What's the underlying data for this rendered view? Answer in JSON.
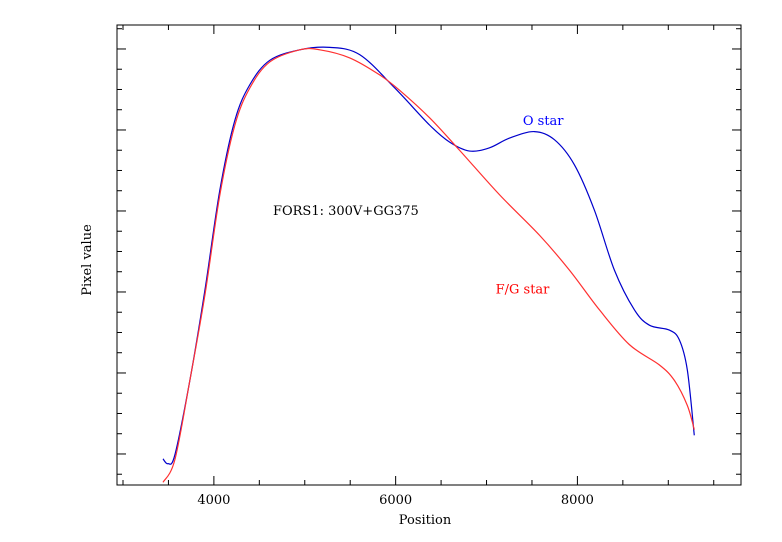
{
  "chart_data": {
    "type": "line",
    "title": "",
    "xlabel": "Position",
    "ylabel": "Pixel value",
    "xlim": [
      2934,
      9800
    ],
    "ylim": [
      -0.383,
      5.296
    ],
    "x_major_ticks": [
      4000,
      6000,
      8000
    ],
    "x_minor_step": 500,
    "y_major_ticks": [
      0,
      1,
      2,
      3,
      4,
      5
    ],
    "y_minor_step": 0.25,
    "x_tick_labels": [
      "4000",
      "6000",
      "8000"
    ],
    "y_tick_labels_shown": false,
    "grid": false,
    "annotations": [
      {
        "text": "FORS1: 300V+GG375",
        "x": 4650,
        "y": 2.95,
        "color": "#000000"
      },
      {
        "text": "O star",
        "x": 7400,
        "y": 4.06,
        "color": "#0000ff"
      },
      {
        "text": "F/G star",
        "x": 7100,
        "y": 1.98,
        "color": "#ff0000"
      }
    ],
    "series": [
      {
        "name": "O star",
        "color": "#0000cc",
        "x": [
          3440,
          3494,
          3571,
          3736,
          3901,
          4066,
          4231,
          4396,
          4615,
          4945,
          5275,
          5604,
          5989,
          6374,
          6594,
          6813,
          7033,
          7253,
          7527,
          7747,
          7967,
          8187,
          8407,
          8627,
          8792,
          9011,
          9121,
          9209,
          9286
        ],
        "y": [
          -0.06,
          -0.12,
          -0.01,
          0.91,
          2.02,
          3.26,
          4.12,
          4.56,
          4.86,
          4.99,
          5.02,
          4.93,
          4.52,
          4.06,
          3.85,
          3.74,
          3.78,
          3.9,
          3.98,
          3.88,
          3.57,
          3.01,
          2.27,
          1.78,
          1.59,
          1.53,
          1.41,
          1.04,
          0.23
        ]
      },
      {
        "name": "F/G star",
        "color": "#ff3030",
        "x": [
          3440,
          3571,
          3736,
          3901,
          4066,
          4231,
          4396,
          4615,
          4945,
          5165,
          5495,
          5824,
          6044,
          6374,
          6703,
          7143,
          7583,
          7912,
          8242,
          8572,
          8901,
          9066,
          9209,
          9286
        ],
        "y": [
          -0.35,
          -0.07,
          0.91,
          1.96,
          3.2,
          4.06,
          4.52,
          4.84,
          4.99,
          4.99,
          4.89,
          4.68,
          4.49,
          4.15,
          3.75,
          3.2,
          2.7,
          2.27,
          1.78,
          1.35,
          1.1,
          0.91,
          0.6,
          0.3
        ]
      }
    ]
  }
}
